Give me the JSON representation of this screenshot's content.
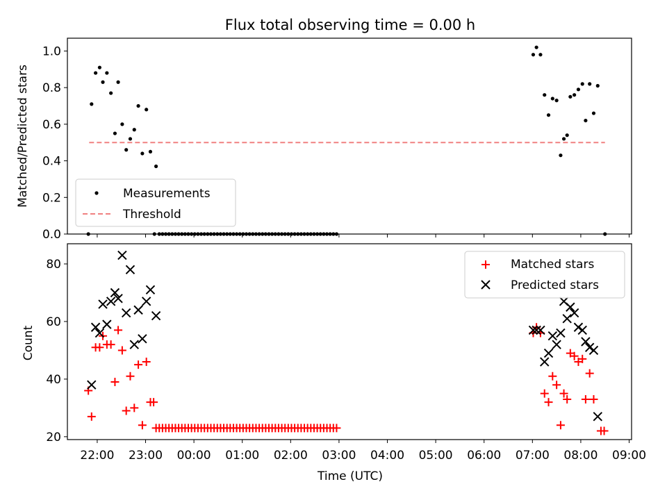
{
  "chart_data": [
    {
      "type": "scatter",
      "title": "Flux total observing time = 0.00 h",
      "xlabel": "",
      "ylabel": "Matched/Predicted stars",
      "ylim": [
        0,
        1.07
      ],
      "yticks": [
        "0.0",
        "0.2",
        "0.4",
        "0.6",
        "0.8",
        "1.0"
      ],
      "legend": {
        "placement": "lower-left",
        "entries": [
          "Measurements",
          "Threshold"
        ]
      },
      "threshold": {
        "value": 0.5,
        "x_start": "21:50",
        "x_end": "08:30",
        "color": "#f08080"
      },
      "series": [
        {
          "name": "Measurements",
          "marker": "dot",
          "color": "#000000",
          "points": [
            [
              "21:49",
              0.0
            ],
            [
              "21:53",
              0.71
            ],
            [
              "21:58",
              0.88
            ],
            [
              "22:03",
              0.91
            ],
            [
              "22:07",
              0.83
            ],
            [
              "22:12",
              0.88
            ],
            [
              "22:17",
              0.77
            ],
            [
              "22:22",
              0.55
            ],
            [
              "22:26",
              0.83
            ],
            [
              "22:31",
              0.6
            ],
            [
              "22:36",
              0.46
            ],
            [
              "22:41",
              0.52
            ],
            [
              "22:46",
              0.57
            ],
            [
              "22:51",
              0.7
            ],
            [
              "22:56",
              0.44
            ],
            [
              "23:01",
              0.68
            ],
            [
              "23:06",
              0.45
            ],
            [
              "23:13",
              0.37
            ],
            [
              "23:11",
              0.0
            ],
            [
              "23:17",
              0.0
            ],
            [
              "23:21",
              0.0
            ],
            [
              "23:25",
              0.0
            ],
            [
              "23:29",
              0.0
            ],
            [
              "23:33",
              0.0
            ],
            [
              "23:37",
              0.0
            ],
            [
              "23:41",
              0.0
            ],
            [
              "23:45",
              0.0
            ],
            [
              "23:49",
              0.0
            ],
            [
              "23:53",
              0.0
            ],
            [
              "23:57",
              0.0
            ],
            [
              "00:01",
              0.0
            ],
            [
              "00:05",
              0.0
            ],
            [
              "00:09",
              0.0
            ],
            [
              "00:13",
              0.0
            ],
            [
              "00:17",
              0.0
            ],
            [
              "00:21",
              0.0
            ],
            [
              "00:25",
              0.0
            ],
            [
              "00:29",
              0.0
            ],
            [
              "00:33",
              0.0
            ],
            [
              "00:37",
              0.0
            ],
            [
              "00:41",
              0.0
            ],
            [
              "00:45",
              0.0
            ],
            [
              "00:49",
              0.0
            ],
            [
              "00:53",
              0.0
            ],
            [
              "00:57",
              0.0
            ],
            [
              "01:01",
              0.0
            ],
            [
              "01:05",
              0.0
            ],
            [
              "01:09",
              0.0
            ],
            [
              "01:13",
              0.0
            ],
            [
              "01:17",
              0.0
            ],
            [
              "01:21",
              0.0
            ],
            [
              "01:25",
              0.0
            ],
            [
              "01:29",
              0.0
            ],
            [
              "01:33",
              0.0
            ],
            [
              "01:37",
              0.0
            ],
            [
              "01:41",
              0.0
            ],
            [
              "01:45",
              0.0
            ],
            [
              "01:49",
              0.0
            ],
            [
              "01:53",
              0.0
            ],
            [
              "01:57",
              0.0
            ],
            [
              "02:01",
              0.0
            ],
            [
              "02:05",
              0.0
            ],
            [
              "02:09",
              0.0
            ],
            [
              "02:13",
              0.0
            ],
            [
              "02:17",
              0.0
            ],
            [
              "02:21",
              0.0
            ],
            [
              "02:25",
              0.0
            ],
            [
              "02:29",
              0.0
            ],
            [
              "02:33",
              0.0
            ],
            [
              "02:37",
              0.0
            ],
            [
              "02:41",
              0.0
            ],
            [
              "02:45",
              0.0
            ],
            [
              "02:49",
              0.0
            ],
            [
              "02:53",
              0.0
            ],
            [
              "02:57",
              0.0
            ],
            [
              "07:01",
              0.98
            ],
            [
              "07:05",
              1.02
            ],
            [
              "07:10",
              0.98
            ],
            [
              "07:15",
              0.76
            ],
            [
              "07:20",
              0.65
            ],
            [
              "07:25",
              0.74
            ],
            [
              "07:30",
              0.73
            ],
            [
              "07:35",
              0.43
            ],
            [
              "07:39",
              0.52
            ],
            [
              "07:43",
              0.54
            ],
            [
              "07:47",
              0.75
            ],
            [
              "07:52",
              0.76
            ],
            [
              "07:57",
              0.79
            ],
            [
              "08:02",
              0.82
            ],
            [
              "08:06",
              0.62
            ],
            [
              "08:11",
              0.82
            ],
            [
              "08:16",
              0.66
            ],
            [
              "08:21",
              0.81
            ],
            [
              "08:30",
              0.0
            ]
          ]
        }
      ]
    },
    {
      "type": "scatter",
      "title": "",
      "xlabel": "Time (UTC)",
      "ylabel": "Count",
      "ylim": [
        19,
        87
      ],
      "yticks": [
        "20",
        "40",
        "60",
        "80"
      ],
      "xlim": [
        "21:23",
        "09:03"
      ],
      "xticks": [
        "22:00",
        "23:00",
        "00:00",
        "01:00",
        "02:00",
        "03:00",
        "04:00",
        "05:00",
        "06:00",
        "07:00",
        "08:00",
        "09:00"
      ],
      "legend": {
        "placement": "top-right",
        "entries": [
          "Matched stars",
          "Predicted stars"
        ]
      },
      "series": [
        {
          "name": "Matched stars",
          "marker": "plus",
          "color": "#ff0000",
          "points": [
            [
              "21:49",
              36
            ],
            [
              "21:53",
              27
            ],
            [
              "21:58",
              51
            ],
            [
              "22:03",
              51
            ],
            [
              "22:07",
              55
            ],
            [
              "22:12",
              52
            ],
            [
              "22:17",
              52
            ],
            [
              "22:22",
              39
            ],
            [
              "22:26",
              57
            ],
            [
              "22:31",
              50
            ],
            [
              "22:36",
              29
            ],
            [
              "22:41",
              41
            ],
            [
              "22:46",
              30
            ],
            [
              "22:51",
              45
            ],
            [
              "22:56",
              24
            ],
            [
              "23:01",
              46
            ],
            [
              "23:06",
              32
            ],
            [
              "23:10",
              32
            ],
            [
              "23:13",
              23
            ],
            [
              "23:17",
              23
            ],
            [
              "23:21",
              23
            ],
            [
              "23:25",
              23
            ],
            [
              "23:29",
              23
            ],
            [
              "23:33",
              23
            ],
            [
              "23:37",
              23
            ],
            [
              "23:41",
              23
            ],
            [
              "23:45",
              23
            ],
            [
              "23:49",
              23
            ],
            [
              "23:53",
              23
            ],
            [
              "23:57",
              23
            ],
            [
              "00:01",
              23
            ],
            [
              "00:05",
              23
            ],
            [
              "00:09",
              23
            ],
            [
              "00:13",
              23
            ],
            [
              "00:17",
              23
            ],
            [
              "00:21",
              23
            ],
            [
              "00:25",
              23
            ],
            [
              "00:29",
              23
            ],
            [
              "00:33",
              23
            ],
            [
              "00:37",
              23
            ],
            [
              "00:41",
              23
            ],
            [
              "00:45",
              23
            ],
            [
              "00:49",
              23
            ],
            [
              "00:53",
              23
            ],
            [
              "00:57",
              23
            ],
            [
              "01:01",
              23
            ],
            [
              "01:05",
              23
            ],
            [
              "01:09",
              23
            ],
            [
              "01:13",
              23
            ],
            [
              "01:17",
              23
            ],
            [
              "01:21",
              23
            ],
            [
              "01:25",
              23
            ],
            [
              "01:29",
              23
            ],
            [
              "01:33",
              23
            ],
            [
              "01:37",
              23
            ],
            [
              "01:41",
              23
            ],
            [
              "01:45",
              23
            ],
            [
              "01:49",
              23
            ],
            [
              "01:53",
              23
            ],
            [
              "01:57",
              23
            ],
            [
              "02:01",
              23
            ],
            [
              "02:05",
              23
            ],
            [
              "02:09",
              23
            ],
            [
              "02:13",
              23
            ],
            [
              "02:17",
              23
            ],
            [
              "02:21",
              23
            ],
            [
              "02:25",
              23
            ],
            [
              "02:29",
              23
            ],
            [
              "02:33",
              23
            ],
            [
              "02:37",
              23
            ],
            [
              "02:41",
              23
            ],
            [
              "02:45",
              23
            ],
            [
              "02:49",
              23
            ],
            [
              "02:53",
              23
            ],
            [
              "02:57",
              23
            ],
            [
              "07:01",
              56
            ],
            [
              "07:05",
              58
            ],
            [
              "07:10",
              56
            ],
            [
              "07:15",
              35
            ],
            [
              "07:20",
              32
            ],
            [
              "07:25",
              41
            ],
            [
              "07:30",
              38
            ],
            [
              "07:35",
              24
            ],
            [
              "07:39",
              35
            ],
            [
              "07:43",
              33
            ],
            [
              "07:47",
              49
            ],
            [
              "07:52",
              48
            ],
            [
              "07:57",
              46
            ],
            [
              "08:02",
              47
            ],
            [
              "08:06",
              33
            ],
            [
              "08:11",
              42
            ],
            [
              "08:16",
              33
            ],
            [
              "08:25",
              22
            ],
            [
              "08:29",
              22
            ]
          ]
        },
        {
          "name": "Predicted stars",
          "marker": "x",
          "color": "#000000",
          "points": [
            [
              "21:53",
              38
            ],
            [
              "21:58",
              58
            ],
            [
              "22:03",
              56
            ],
            [
              "22:07",
              66
            ],
            [
              "22:12",
              59
            ],
            [
              "22:17",
              67
            ],
            [
              "22:22",
              70
            ],
            [
              "22:26",
              68
            ],
            [
              "22:31",
              83
            ],
            [
              "22:36",
              63
            ],
            [
              "22:41",
              78
            ],
            [
              "22:46",
              52
            ],
            [
              "22:51",
              64
            ],
            [
              "22:56",
              54
            ],
            [
              "23:01",
              67
            ],
            [
              "23:06",
              71
            ],
            [
              "23:13",
              62
            ],
            [
              "07:01",
              57
            ],
            [
              "07:05",
              57
            ],
            [
              "07:10",
              57
            ],
            [
              "07:15",
              46
            ],
            [
              "07:20",
              49
            ],
            [
              "07:25",
              55
            ],
            [
              "07:30",
              52
            ],
            [
              "07:35",
              56
            ],
            [
              "07:39",
              67
            ],
            [
              "07:43",
              61
            ],
            [
              "07:47",
              65
            ],
            [
              "07:52",
              63
            ],
            [
              "07:57",
              58
            ],
            [
              "08:02",
              57
            ],
            [
              "08:06",
              53
            ],
            [
              "08:11",
              51
            ],
            [
              "08:16",
              50
            ],
            [
              "08:21",
              27
            ]
          ]
        }
      ]
    }
  ]
}
